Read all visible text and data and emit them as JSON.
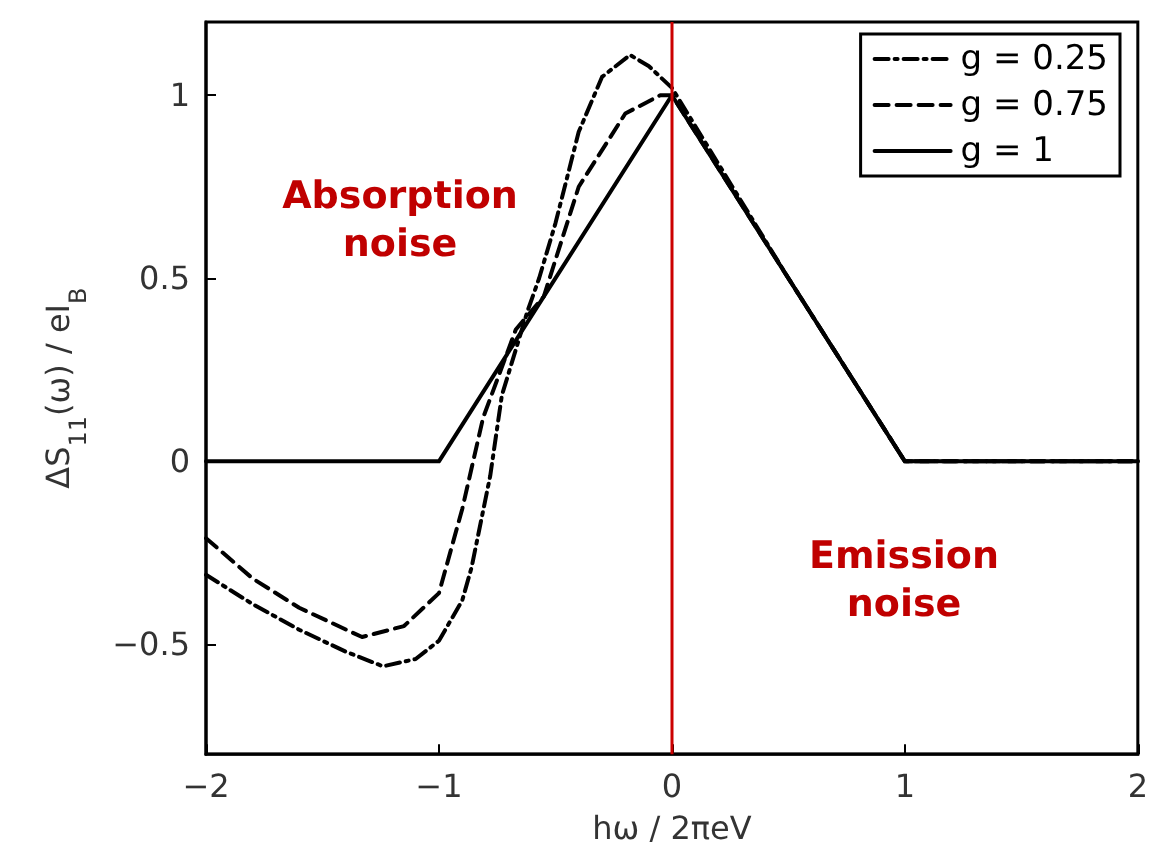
{
  "chart_data": {
    "type": "line",
    "xlabel": "hω / 2πeV",
    "ylabel": "ΔS$_{11}$(ω) / eI$_{B}$",
    "xlim": [
      -2,
      2
    ],
    "xticks": [
      -2,
      -1,
      0,
      1,
      2
    ],
    "ylim": [
      -0.8,
      1.2
    ],
    "yticks": [
      -0.5,
      0,
      0.5,
      1
    ],
    "grid": false,
    "legend": "top right",
    "marker": "none",
    "series": [
      {
        "name": "g = 0.25",
        "color": "#000000",
        "line_style": "dashdot",
        "x": [
          -2,
          -1.8,
          -1.6,
          -1.4,
          -1.24,
          -1.1,
          -1,
          -0.9,
          -0.86,
          -0.78,
          -0.73,
          -0.62,
          -0.57,
          -0.5,
          -0.4,
          -0.3,
          -0.18,
          -0.1,
          0,
          0.5,
          1,
          2
        ],
        "values": [
          -0.31,
          -0.39,
          -0.46,
          -0.52,
          -0.56,
          -0.54,
          -0.49,
          -0.38,
          -0.29,
          -0.04,
          0.18,
          0.41,
          0.5,
          0.65,
          0.9,
          1.05,
          1.11,
          1.08,
          1.02,
          0.5,
          0,
          0
        ]
      },
      {
        "name": "g = 0.75",
        "color": "#000000",
        "line_style": "dashed",
        "x": [
          -2,
          -1.8,
          -1.6,
          -1.33,
          -1.15,
          -1,
          -0.9,
          -0.81,
          -0.67,
          -0.55,
          -0.4,
          -0.2,
          -0.05,
          0,
          0.5,
          1,
          2
        ],
        "values": [
          -0.21,
          -0.32,
          -0.4,
          -0.48,
          -0.45,
          -0.36,
          -0.13,
          0.12,
          0.36,
          0.45,
          0.75,
          0.95,
          1.0,
          1.0,
          0.5,
          0,
          0
        ]
      },
      {
        "name": "g = 1",
        "color": "#000000",
        "line_style": "solid",
        "x": [
          -2,
          -1,
          0,
          1,
          2
        ],
        "values": [
          0,
          0,
          1,
          0,
          0
        ]
      }
    ],
    "ref_lines": [
      {
        "axis": "x",
        "value": 0,
        "label": null,
        "color": "#cc0000"
      }
    ],
    "annotations": [
      "Absorption\nnoise",
      "Emission\nnoise"
    ]
  }
}
